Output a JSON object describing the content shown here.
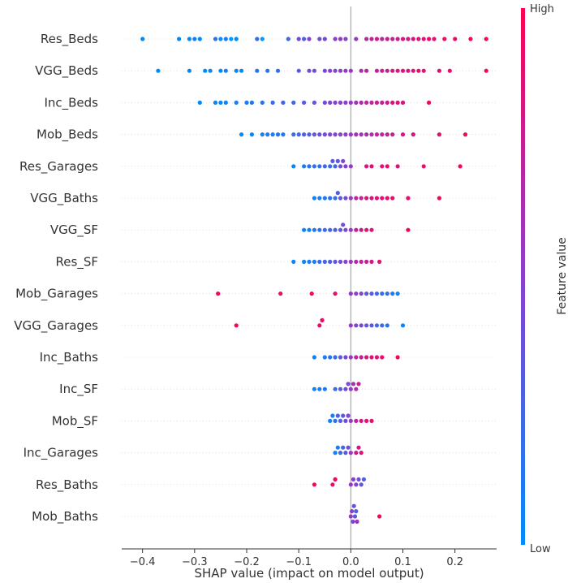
{
  "chart_data": {
    "type": "scatter",
    "subtype": "shap-beeswarm",
    "xlabel": "SHAP value (impact on model output)",
    "xlim": [
      -0.44,
      0.28
    ],
    "xticks": [
      -0.4,
      -0.3,
      -0.2,
      -0.1,
      0.0,
      0.1,
      0.2
    ],
    "xtick_labels": [
      "−0.4",
      "−0.3",
      "−0.2",
      "−0.1",
      "0.0",
      "0.1",
      "0.2"
    ],
    "colorbar": {
      "title": "Feature value",
      "high_label": "High",
      "low_label": "Low",
      "low_color": "#008bfb",
      "high_color": "#ff0052"
    },
    "features": [
      {
        "name": "Res_Beds",
        "points": [
          [
            -0.4,
            0
          ],
          [
            -0.33,
            0
          ],
          [
            -0.31,
            0
          ],
          [
            -0.3,
            0.05
          ],
          [
            -0.29,
            0
          ],
          [
            -0.26,
            0.15
          ],
          [
            -0.25,
            -0.05
          ],
          [
            -0.24,
            0.1
          ],
          [
            -0.23,
            -0.1
          ],
          [
            -0.22,
            0
          ],
          [
            -0.18,
            0.2
          ],
          [
            -0.17,
            -0.1
          ],
          [
            -0.12,
            0.2
          ],
          [
            -0.1,
            0.4
          ],
          [
            -0.09,
            0.3
          ],
          [
            -0.08,
            0.5
          ],
          [
            -0.06,
            0.4
          ],
          [
            -0.05,
            0.45
          ],
          [
            -0.03,
            0.5
          ],
          [
            -0.02,
            0.55
          ],
          [
            -0.01,
            0.5
          ],
          [
            0.01,
            0.55
          ],
          [
            0.03,
            0.65
          ],
          [
            0.04,
            0.7
          ],
          [
            0.05,
            0.75
          ],
          [
            0.06,
            0.7
          ],
          [
            0.07,
            0.75
          ],
          [
            0.08,
            0.7
          ],
          [
            0.09,
            0.75
          ],
          [
            0.1,
            0.8
          ],
          [
            0.11,
            0.8
          ],
          [
            0.12,
            0.85
          ],
          [
            0.13,
            0.8
          ],
          [
            0.14,
            0.85
          ],
          [
            0.15,
            0.9
          ],
          [
            0.16,
            0.85
          ],
          [
            0.18,
            0.9
          ],
          [
            0.2,
            0.9
          ],
          [
            0.23,
            0.95
          ],
          [
            0.26,
            0.95
          ]
        ]
      },
      {
        "name": "VGG_Beds",
        "points": [
          [
            -0.37,
            0
          ],
          [
            -0.31,
            0.05
          ],
          [
            -0.28,
            0
          ],
          [
            -0.27,
            0.05
          ],
          [
            -0.25,
            0
          ],
          [
            -0.24,
            0.1
          ],
          [
            -0.22,
            0.05
          ],
          [
            -0.21,
            0
          ],
          [
            -0.18,
            0.15
          ],
          [
            -0.16,
            0.15
          ],
          [
            -0.14,
            0.2
          ],
          [
            -0.1,
            0.3
          ],
          [
            -0.08,
            0.4
          ],
          [
            -0.07,
            0.4
          ],
          [
            -0.05,
            0.45
          ],
          [
            -0.04,
            0.5
          ],
          [
            -0.03,
            0.45
          ],
          [
            -0.02,
            0.5
          ],
          [
            -0.01,
            0.55
          ],
          [
            0.0,
            0.55
          ],
          [
            0.02,
            0.65
          ],
          [
            0.03,
            0.7
          ],
          [
            0.05,
            0.7
          ],
          [
            0.06,
            0.75
          ],
          [
            0.07,
            0.75
          ],
          [
            0.08,
            0.8
          ],
          [
            0.09,
            0.8
          ],
          [
            0.1,
            0.85
          ],
          [
            0.11,
            0.8
          ],
          [
            0.12,
            0.85
          ],
          [
            0.13,
            0.9
          ],
          [
            0.14,
            0.85
          ],
          [
            0.17,
            0.9
          ],
          [
            0.19,
            0.9
          ],
          [
            0.26,
            0.95
          ]
        ]
      },
      {
        "name": "Inc_Beds",
        "points": [
          [
            -0.29,
            0
          ],
          [
            -0.26,
            0.05
          ],
          [
            -0.25,
            0
          ],
          [
            -0.24,
            0.05
          ],
          [
            -0.22,
            0.1
          ],
          [
            -0.2,
            0.1
          ],
          [
            -0.19,
            0.15
          ],
          [
            -0.17,
            0.15
          ],
          [
            -0.15,
            0.2
          ],
          [
            -0.13,
            0.25
          ],
          [
            -0.11,
            0.25
          ],
          [
            -0.09,
            0.3
          ],
          [
            -0.07,
            0.35
          ],
          [
            -0.05,
            0.4
          ],
          [
            -0.04,
            0.45
          ],
          [
            -0.03,
            0.45
          ],
          [
            -0.02,
            0.5
          ],
          [
            -0.01,
            0.5
          ],
          [
            0.0,
            0.55
          ],
          [
            0.01,
            0.6
          ],
          [
            0.02,
            0.65
          ],
          [
            0.03,
            0.7
          ],
          [
            0.04,
            0.7
          ],
          [
            0.05,
            0.75
          ],
          [
            0.06,
            0.75
          ],
          [
            0.07,
            0.8
          ],
          [
            0.08,
            0.8
          ],
          [
            0.09,
            0.85
          ],
          [
            0.1,
            0.85
          ],
          [
            0.15,
            0.95
          ]
        ]
      },
      {
        "name": "Mob_Beds",
        "points": [
          [
            -0.21,
            0
          ],
          [
            -0.19,
            0.05
          ],
          [
            -0.17,
            0.05
          ],
          [
            -0.16,
            0.1
          ],
          [
            -0.15,
            0.1
          ],
          [
            -0.14,
            0.15
          ],
          [
            -0.13,
            0.15
          ],
          [
            -0.11,
            0.2
          ],
          [
            -0.1,
            0.25
          ],
          [
            -0.09,
            0.3
          ],
          [
            -0.08,
            0.3
          ],
          [
            -0.07,
            0.35
          ],
          [
            -0.06,
            0.4
          ],
          [
            -0.05,
            0.4
          ],
          [
            -0.04,
            0.45
          ],
          [
            -0.03,
            0.45
          ],
          [
            -0.02,
            0.5
          ],
          [
            -0.01,
            0.5
          ],
          [
            0.0,
            0.55
          ],
          [
            0.01,
            0.6
          ],
          [
            0.02,
            0.6
          ],
          [
            0.03,
            0.65
          ],
          [
            0.04,
            0.65
          ],
          [
            0.05,
            0.7
          ],
          [
            0.06,
            0.7
          ],
          [
            0.07,
            0.75
          ],
          [
            0.08,
            0.75
          ],
          [
            0.1,
            0.8
          ],
          [
            0.12,
            0.85
          ],
          [
            0.17,
            0.9
          ],
          [
            0.22,
            0.95
          ]
        ]
      },
      {
        "name": "Res_Garages",
        "points": [
          [
            -0.11,
            0.05
          ],
          [
            -0.09,
            0.1
          ],
          [
            -0.08,
            0.15
          ],
          [
            -0.07,
            0.2
          ],
          [
            -0.06,
            0.15
          ],
          [
            -0.05,
            0.25
          ],
          [
            -0.04,
            0.2
          ],
          [
            -0.035,
            0.3
          ],
          [
            -0.03,
            0.25
          ],
          [
            -0.025,
            0.35
          ],
          [
            -0.02,
            0.4
          ],
          [
            -0.015,
            0.45
          ],
          [
            -0.01,
            0.5
          ],
          [
            0.0,
            0.55
          ],
          [
            0.03,
            0.8
          ],
          [
            0.04,
            0.9
          ],
          [
            0.06,
            0.85
          ],
          [
            0.07,
            0.9
          ],
          [
            0.09,
            0.85
          ],
          [
            0.14,
            0.9
          ],
          [
            0.21,
            0.95
          ]
        ]
      },
      {
        "name": "VGG_Baths",
        "points": [
          [
            -0.07,
            0.05
          ],
          [
            -0.06,
            0.1
          ],
          [
            -0.05,
            0.1
          ],
          [
            -0.04,
            0.15
          ],
          [
            -0.03,
            0.2
          ],
          [
            -0.025,
            0.3
          ],
          [
            -0.02,
            0.35
          ],
          [
            -0.01,
            0.4
          ],
          [
            0.0,
            0.55
          ],
          [
            0.01,
            0.7
          ],
          [
            0.02,
            0.75
          ],
          [
            0.03,
            0.8
          ],
          [
            0.04,
            0.8
          ],
          [
            0.05,
            0.85
          ],
          [
            0.06,
            0.85
          ],
          [
            0.07,
            0.9
          ],
          [
            0.08,
            0.9
          ],
          [
            0.11,
            0.9
          ],
          [
            0.17,
            0.95
          ]
        ]
      },
      {
        "name": "VGG_SF",
        "points": [
          [
            -0.09,
            0.05
          ],
          [
            -0.08,
            0.05
          ],
          [
            -0.07,
            0.1
          ],
          [
            -0.06,
            0.15
          ],
          [
            -0.05,
            0.2
          ],
          [
            -0.04,
            0.25
          ],
          [
            -0.03,
            0.3
          ],
          [
            -0.02,
            0.35
          ],
          [
            -0.015,
            0.4
          ],
          [
            -0.01,
            0.45
          ],
          [
            0.0,
            0.55
          ],
          [
            0.01,
            0.75
          ],
          [
            0.02,
            0.8
          ],
          [
            0.03,
            0.85
          ],
          [
            0.04,
            0.85
          ],
          [
            0.11,
            0.95
          ]
        ]
      },
      {
        "name": "Res_SF",
        "points": [
          [
            -0.11,
            0.05
          ],
          [
            -0.09,
            0.05
          ],
          [
            -0.08,
            0.1
          ],
          [
            -0.07,
            0.1
          ],
          [
            -0.06,
            0.2
          ],
          [
            -0.05,
            0.25
          ],
          [
            -0.04,
            0.3
          ],
          [
            -0.03,
            0.35
          ],
          [
            -0.02,
            0.4
          ],
          [
            -0.01,
            0.5
          ],
          [
            0.0,
            0.55
          ],
          [
            0.01,
            0.65
          ],
          [
            0.02,
            0.7
          ],
          [
            0.03,
            0.75
          ],
          [
            0.04,
            0.8
          ],
          [
            0.055,
            0.85
          ]
        ]
      },
      {
        "name": "Mob_Garages",
        "points": [
          [
            -0.255,
            0.95
          ],
          [
            -0.135,
            0.9
          ],
          [
            -0.075,
            0.95
          ],
          [
            -0.03,
            0.9
          ],
          [
            0.0,
            0.55
          ],
          [
            0.01,
            0.5
          ],
          [
            0.02,
            0.45
          ],
          [
            0.03,
            0.35
          ],
          [
            0.04,
            0.3
          ],
          [
            0.05,
            0.25
          ],
          [
            0.06,
            0.2
          ],
          [
            0.07,
            0.15
          ],
          [
            0.08,
            0.1
          ],
          [
            0.09,
            0.05
          ]
        ]
      },
      {
        "name": "VGG_Garages",
        "points": [
          [
            -0.22,
            0.95
          ],
          [
            -0.06,
            0.9
          ],
          [
            -0.055,
            0.95
          ],
          [
            0.0,
            0.55
          ],
          [
            0.01,
            0.45
          ],
          [
            0.02,
            0.4
          ],
          [
            0.03,
            0.35
          ],
          [
            0.04,
            0.3
          ],
          [
            0.05,
            0.25
          ],
          [
            0.06,
            0.2
          ],
          [
            0.07,
            0.15
          ],
          [
            0.1,
            0.05
          ]
        ]
      },
      {
        "name": "Inc_Baths",
        "points": [
          [
            -0.07,
            0.05
          ],
          [
            -0.05,
            0.1
          ],
          [
            -0.04,
            0.15
          ],
          [
            -0.03,
            0.2
          ],
          [
            -0.02,
            0.35
          ],
          [
            -0.01,
            0.4
          ],
          [
            0.0,
            0.55
          ],
          [
            0.01,
            0.7
          ],
          [
            0.02,
            0.75
          ],
          [
            0.03,
            0.8
          ],
          [
            0.04,
            0.85
          ],
          [
            0.05,
            0.85
          ],
          [
            0.06,
            0.9
          ],
          [
            0.09,
            0.95
          ]
        ]
      },
      {
        "name": "Inc_SF",
        "points": [
          [
            -0.07,
            0.05
          ],
          [
            -0.06,
            0.1
          ],
          [
            -0.05,
            0.1
          ],
          [
            -0.03,
            0.2
          ],
          [
            -0.02,
            0.3
          ],
          [
            -0.01,
            0.4
          ],
          [
            -0.005,
            0.45
          ],
          [
            0.0,
            0.55
          ],
          [
            0.005,
            0.6
          ],
          [
            0.01,
            0.65
          ],
          [
            0.015,
            0.75
          ]
        ]
      },
      {
        "name": "Mob_SF",
        "points": [
          [
            -0.04,
            0.05
          ],
          [
            -0.035,
            0.1
          ],
          [
            -0.03,
            0.2
          ],
          [
            -0.025,
            0.25
          ],
          [
            -0.02,
            0.3
          ],
          [
            -0.015,
            0.35
          ],
          [
            -0.01,
            0.4
          ],
          [
            -0.005,
            0.45
          ],
          [
            0.0,
            0.55
          ],
          [
            0.01,
            0.7
          ],
          [
            0.02,
            0.8
          ],
          [
            0.03,
            0.85
          ],
          [
            0.04,
            0.9
          ]
        ]
      },
      {
        "name": "Inc_Garages",
        "points": [
          [
            -0.03,
            0.05
          ],
          [
            -0.025,
            0.1
          ],
          [
            -0.02,
            0.2
          ],
          [
            -0.015,
            0.25
          ],
          [
            -0.01,
            0.3
          ],
          [
            -0.005,
            0.4
          ],
          [
            0.0,
            0.55
          ],
          [
            0.01,
            0.75
          ],
          [
            0.015,
            0.8
          ],
          [
            0.02,
            0.85
          ]
        ]
      },
      {
        "name": "Res_Baths",
        "points": [
          [
            -0.07,
            0.95
          ],
          [
            -0.035,
            0.9
          ],
          [
            -0.03,
            0.95
          ],
          [
            0.0,
            0.55
          ],
          [
            0.005,
            0.5
          ],
          [
            0.01,
            0.45
          ],
          [
            0.015,
            0.4
          ],
          [
            0.02,
            0.35
          ],
          [
            0.025,
            0.3
          ]
        ]
      },
      {
        "name": "Mob_Baths",
        "points": [
          [
            0.0,
            0.55
          ],
          [
            0.002,
            0.5
          ],
          [
            0.004,
            0.45
          ],
          [
            0.006,
            0.4
          ],
          [
            0.008,
            0.35
          ],
          [
            0.01,
            0.3
          ],
          [
            0.012,
            0.6
          ],
          [
            0.055,
            0.95
          ]
        ]
      }
    ]
  }
}
